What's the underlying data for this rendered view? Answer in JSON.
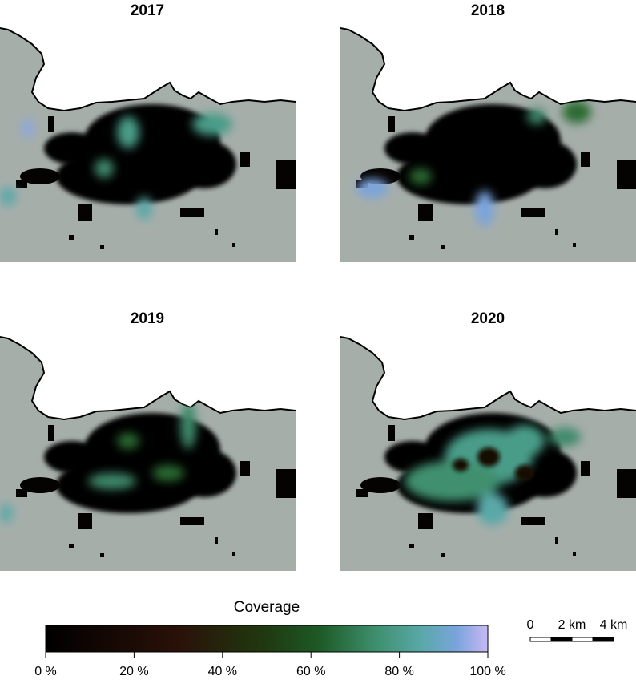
{
  "panels": [
    {
      "title": "2017"
    },
    {
      "title": "2018"
    },
    {
      "title": "2019"
    },
    {
      "title": "2020"
    }
  ],
  "legend": {
    "title": "Coverage",
    "ticks": [
      "0 %",
      "20 %",
      "40 %",
      "60 %",
      "80 %",
      "100 %"
    ]
  },
  "scale_bar": {
    "labels": [
      "0",
      "2 km",
      "4 km"
    ]
  }
}
